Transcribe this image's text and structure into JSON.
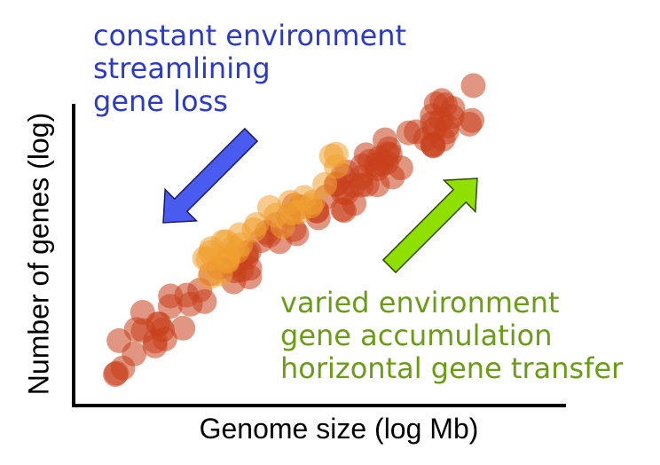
{
  "labels": {
    "y_axis": "Number of genes (log)",
    "x_axis": "Genome size (log Mb)"
  },
  "annotations": {
    "reduction": {
      "lines": [
        "constant environment",
        "streamlining",
        "gene loss"
      ],
      "color": "#2b3bc8",
      "arrow_color": "#4a5cf0",
      "arrow_direction": "down-left"
    },
    "expansion": {
      "lines": [
        "varied environment",
        "gene accumulation",
        "horizontal gene transfer"
      ],
      "color": "#6b9c16",
      "arrow_color": "#8fe000",
      "arrow_direction": "up-right"
    }
  },
  "colors": {
    "points_main": "#c8401c",
    "points_highlight": "#f0a030",
    "axes": "#000000"
  }
}
